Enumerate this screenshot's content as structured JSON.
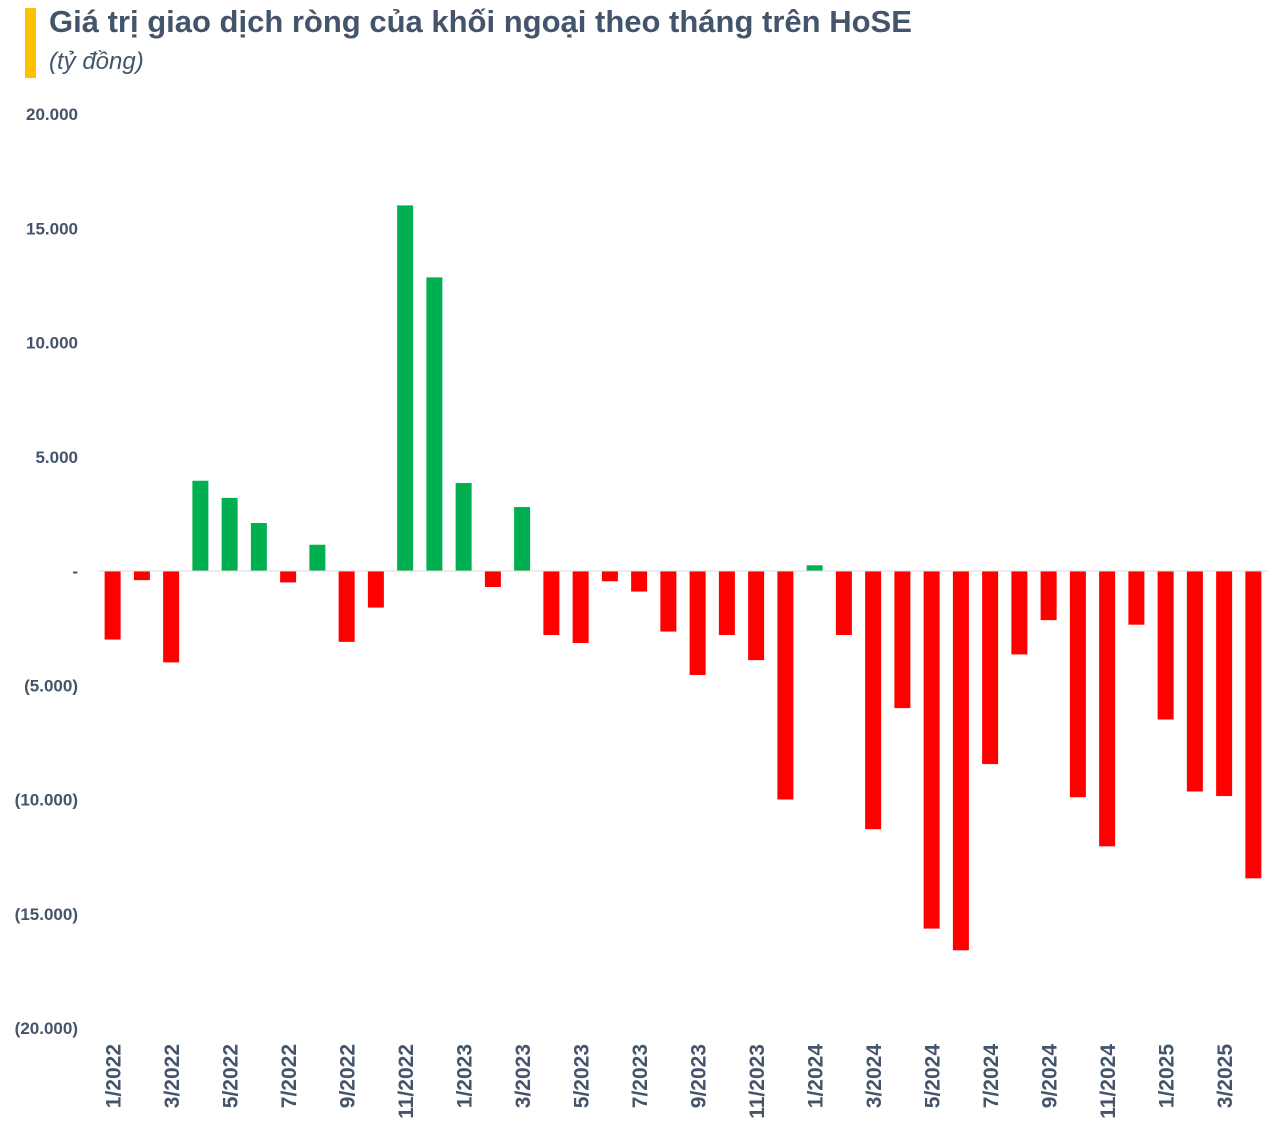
{
  "title": "Giá trị giao dịch ròng của khối ngoại theo tháng trên HoSE",
  "subtitle": "(tỷ đồng)",
  "colors": {
    "positive": "#00B050",
    "negative": "#FF0000",
    "accent": "#FFC000",
    "text": "#44546A",
    "zero_line": "#D9D9D9"
  },
  "chart_data": {
    "type": "bar",
    "title": "Giá trị giao dịch ròng của khối ngoại theo tháng trên HoSE",
    "ylabel": "(tỷ đồng)",
    "xlabel": "",
    "ylim": [
      -20000,
      20000
    ],
    "grid": false,
    "legend": "none",
    "y_tick_values": [
      20000,
      15000,
      10000,
      5000,
      0,
      -5000,
      -10000,
      -15000,
      -20000
    ],
    "y_tick_labels": [
      "20.000",
      "15.000",
      "10.000",
      "5.000",
      "-",
      "(5.000)",
      "(10.000)",
      "(15.000)",
      "(20.000)"
    ],
    "categories": [
      "1/2022",
      "2/2022",
      "3/2022",
      "4/2022",
      "5/2022",
      "6/2022",
      "7/2022",
      "8/2022",
      "9/2022",
      "10/2022",
      "11/2022",
      "12/2022",
      "1/2023",
      "2/2023",
      "3/2023",
      "4/2023",
      "5/2023",
      "6/2023",
      "7/2023",
      "8/2023",
      "9/2023",
      "10/2023",
      "11/2023",
      "12/2023",
      "1/2024",
      "2/2024",
      "3/2024",
      "4/2024",
      "5/2024",
      "6/2024",
      "7/2024",
      "8/2024",
      "9/2024",
      "10/2024",
      "11/2024",
      "12/2024",
      "1/2025",
      "2/2025",
      "3/2025",
      "4/2025"
    ],
    "x_tick_labels": [
      "1/2022",
      "3/2022",
      "5/2022",
      "7/2022",
      "9/2022",
      "11/2022",
      "1/2023",
      "3/2023",
      "5/2023",
      "7/2023",
      "9/2023",
      "11/2023",
      "1/2024",
      "3/2024",
      "5/2024",
      "7/2024",
      "9/2024",
      "11/2024",
      "1/2025",
      "3/2025"
    ],
    "values": [
      -3000,
      -400,
      -4000,
      3950,
      3200,
      2100,
      -500,
      1150,
      -3100,
      -1600,
      16000,
      12850,
      3850,
      -700,
      2800,
      -2800,
      -3150,
      -450,
      -900,
      -2650,
      -4550,
      -2800,
      -3900,
      -10000,
      250,
      -2800,
      -11300,
      -6000,
      -15650,
      -16600,
      -8450,
      -3650,
      -2150,
      -9900,
      -12050,
      -2350,
      -6500,
      -9650,
      -9850,
      -13450
    ]
  }
}
